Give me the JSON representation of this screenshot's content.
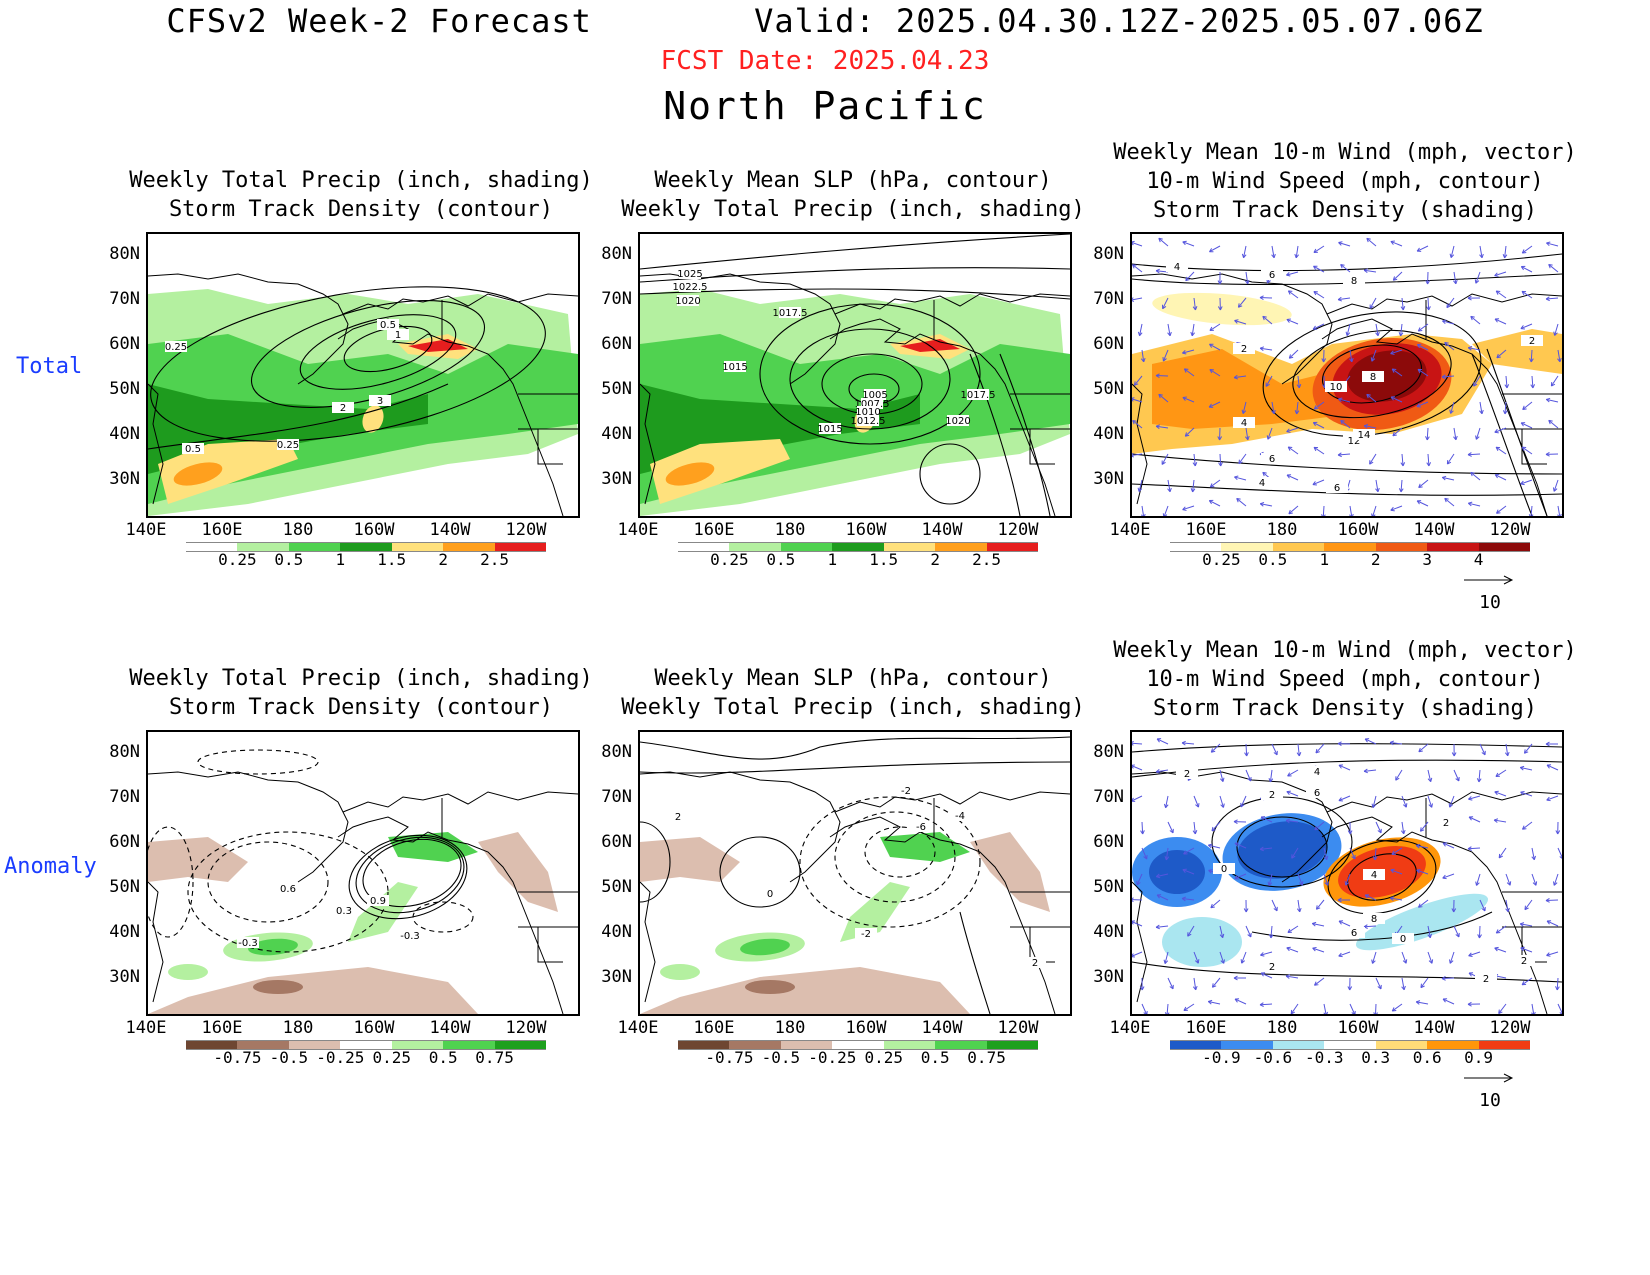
{
  "header": {
    "title": "CFSv2 Week-2 Forecast        Valid: 2025.04.30.12Z-2025.05.07.06Z",
    "fcst_date": "FCST Date: 2025.04.23",
    "region": "North Pacific"
  },
  "rows": [
    {
      "label": "Total"
    },
    {
      "label": "Anomaly"
    }
  ],
  "panels": [
    {
      "title1": "Weekly Total Precip (inch, shading)",
      "title2": "Storm Track Density (contour)",
      "title3": ""
    },
    {
      "title1": "Weekly Mean SLP (hPa, contour)",
      "title2": "Weekly Total Precip (inch, shading)",
      "title3": ""
    },
    {
      "title1": "Weekly Mean 10-m Wind (mph, vector)",
      "title2": "10-m Wind Speed (mph, contour)",
      "title3": "Storm Track Density (shading)"
    },
    {
      "title1": "Weekly Total Precip (inch, shading)",
      "title2": "Storm Track Density (contour)",
      "title3": ""
    },
    {
      "title1": "Weekly Mean SLP (hPa, contour)",
      "title2": "Weekly Total Precip (inch, shading)",
      "title3": ""
    },
    {
      "title1": "Weekly Mean 10-m Wind (mph, vector)",
      "title2": "10-m Wind Speed (mph, contour)",
      "title3": "Storm Track Density (shading)"
    }
  ],
  "axes": {
    "lat_labels": [
      "80N",
      "70N",
      "60N",
      "50N",
      "40N",
      "30N"
    ],
    "lon_labels": [
      "140E",
      "160E",
      "180",
      "160W",
      "140W",
      "120W"
    ]
  },
  "colorbars": {
    "precip_total": {
      "labels": [
        "0.25",
        "0.5",
        "1",
        "1.5",
        "2",
        "2.5"
      ],
      "colors": [
        "#ffffff",
        "#b4f0a0",
        "#50d250",
        "#1e9b1e",
        "#ffe17d",
        "#ffa01e",
        "#e61e1e"
      ]
    },
    "storm_total": {
      "labels": [
        "0.25",
        "0.5",
        "1",
        "2",
        "3",
        "4"
      ],
      "colors": [
        "#ffffff",
        "#fff5b4",
        "#ffc850",
        "#ff9614",
        "#f05a14",
        "#c81414",
        "#8c0a0a"
      ]
    },
    "precip_anom": {
      "labels": [
        "-0.75",
        "-0.5",
        "-0.25",
        "0.25",
        "0.5",
        "0.75"
      ],
      "colors": [
        "#6e4632",
        "#a57864",
        "#dcbeaf",
        "#ffffff",
        "#b4f0a0",
        "#50d250",
        "#1ea01e"
      ]
    },
    "storm_anom": {
      "labels": [
        "-0.9",
        "-0.6",
        "-0.3",
        "0.3",
        "0.6",
        "0.9"
      ],
      "colors": [
        "#1e5ac8",
        "#3c8cf0",
        "#aae6f0",
        "#ffffff",
        "#ffdc78",
        "#ff960a",
        "#f03c14"
      ]
    }
  },
  "wind_reference": {
    "value": "10"
  },
  "contour_labels": {
    "p0": [
      "0.5",
      "1",
      "0.25",
      "2",
      "3",
      "0.5",
      "0.25"
    ],
    "p1": [
      "1025",
      "1022.5",
      "1020",
      "1017.5",
      "1015",
      "1005",
      "1007.5",
      "1010",
      "1012.5",
      "1015",
      "1017.5",
      "1020"
    ],
    "p2": [
      "4",
      "6",
      "8",
      "2",
      "10",
      "8",
      "4",
      "12",
      "14",
      "6",
      "4",
      "6",
      "2"
    ],
    "p3": [
      "0.6",
      "0.3",
      "0.9",
      "-0.3",
      "-0.3"
    ],
    "p4": [
      "2",
      "-2",
      "-6",
      "-4",
      "0",
      "-2",
      "2"
    ],
    "p5": [
      "2",
      "4",
      "2",
      "6",
      "0",
      "4",
      "8",
      "6",
      "2",
      "0",
      "2",
      "2",
      "2"
    ]
  }
}
